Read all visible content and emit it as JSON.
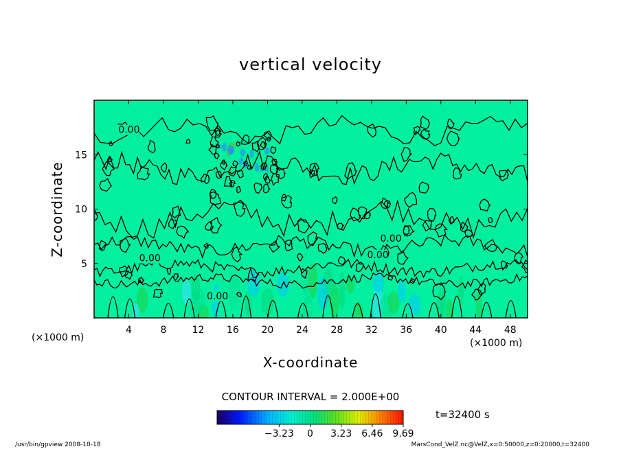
{
  "chart_data": {
    "type": "heatmap",
    "title": "vertical velocity",
    "xlabel": "X-coordinate",
    "ylabel": "Z-coordinate",
    "x_unit": "(×1000 m)",
    "y_unit": "(×1000 m)",
    "xlim": [
      0,
      50
    ],
    "ylim": [
      0,
      20
    ],
    "x_ticks": [
      "4",
      "8",
      "12",
      "16",
      "20",
      "24",
      "28",
      "32",
      "36",
      "40",
      "44",
      "48"
    ],
    "y_ticks": [
      "5",
      "10",
      "15"
    ],
    "contour_interval_text": "CONTOUR INTERVAL = 2.000E+00",
    "contour_labels": [
      {
        "text": "0.00",
        "x": 2.8,
        "z": 17.0
      },
      {
        "text": "0.00",
        "x": 5.2,
        "z": 5.2
      },
      {
        "text": "0.00",
        "x": 13.0,
        "z": 1.7
      },
      {
        "text": "0.00",
        "x": 33.0,
        "z": 7.0
      },
      {
        "text": "0.00",
        "x": 31.5,
        "z": 5.5
      }
    ],
    "colorbar": {
      "min": -9.69,
      "max": 9.69,
      "tick_labels": [
        "-3.23",
        "0",
        "3.23",
        "6.46",
        "9.69"
      ],
      "tick_values": [
        -3.23,
        0,
        3.23,
        6.46,
        9.69
      ]
    },
    "time_label": "t=32400 s",
    "colors": {
      "background_field": "#00f0a0",
      "contour": "#000000"
    }
  },
  "footer": {
    "left": "/usr/bin/gpview  2008-10-18",
    "right": "MarsCond_VelZ.nc@VelZ,x=0:50000,z=0:20000,t=32400"
  }
}
